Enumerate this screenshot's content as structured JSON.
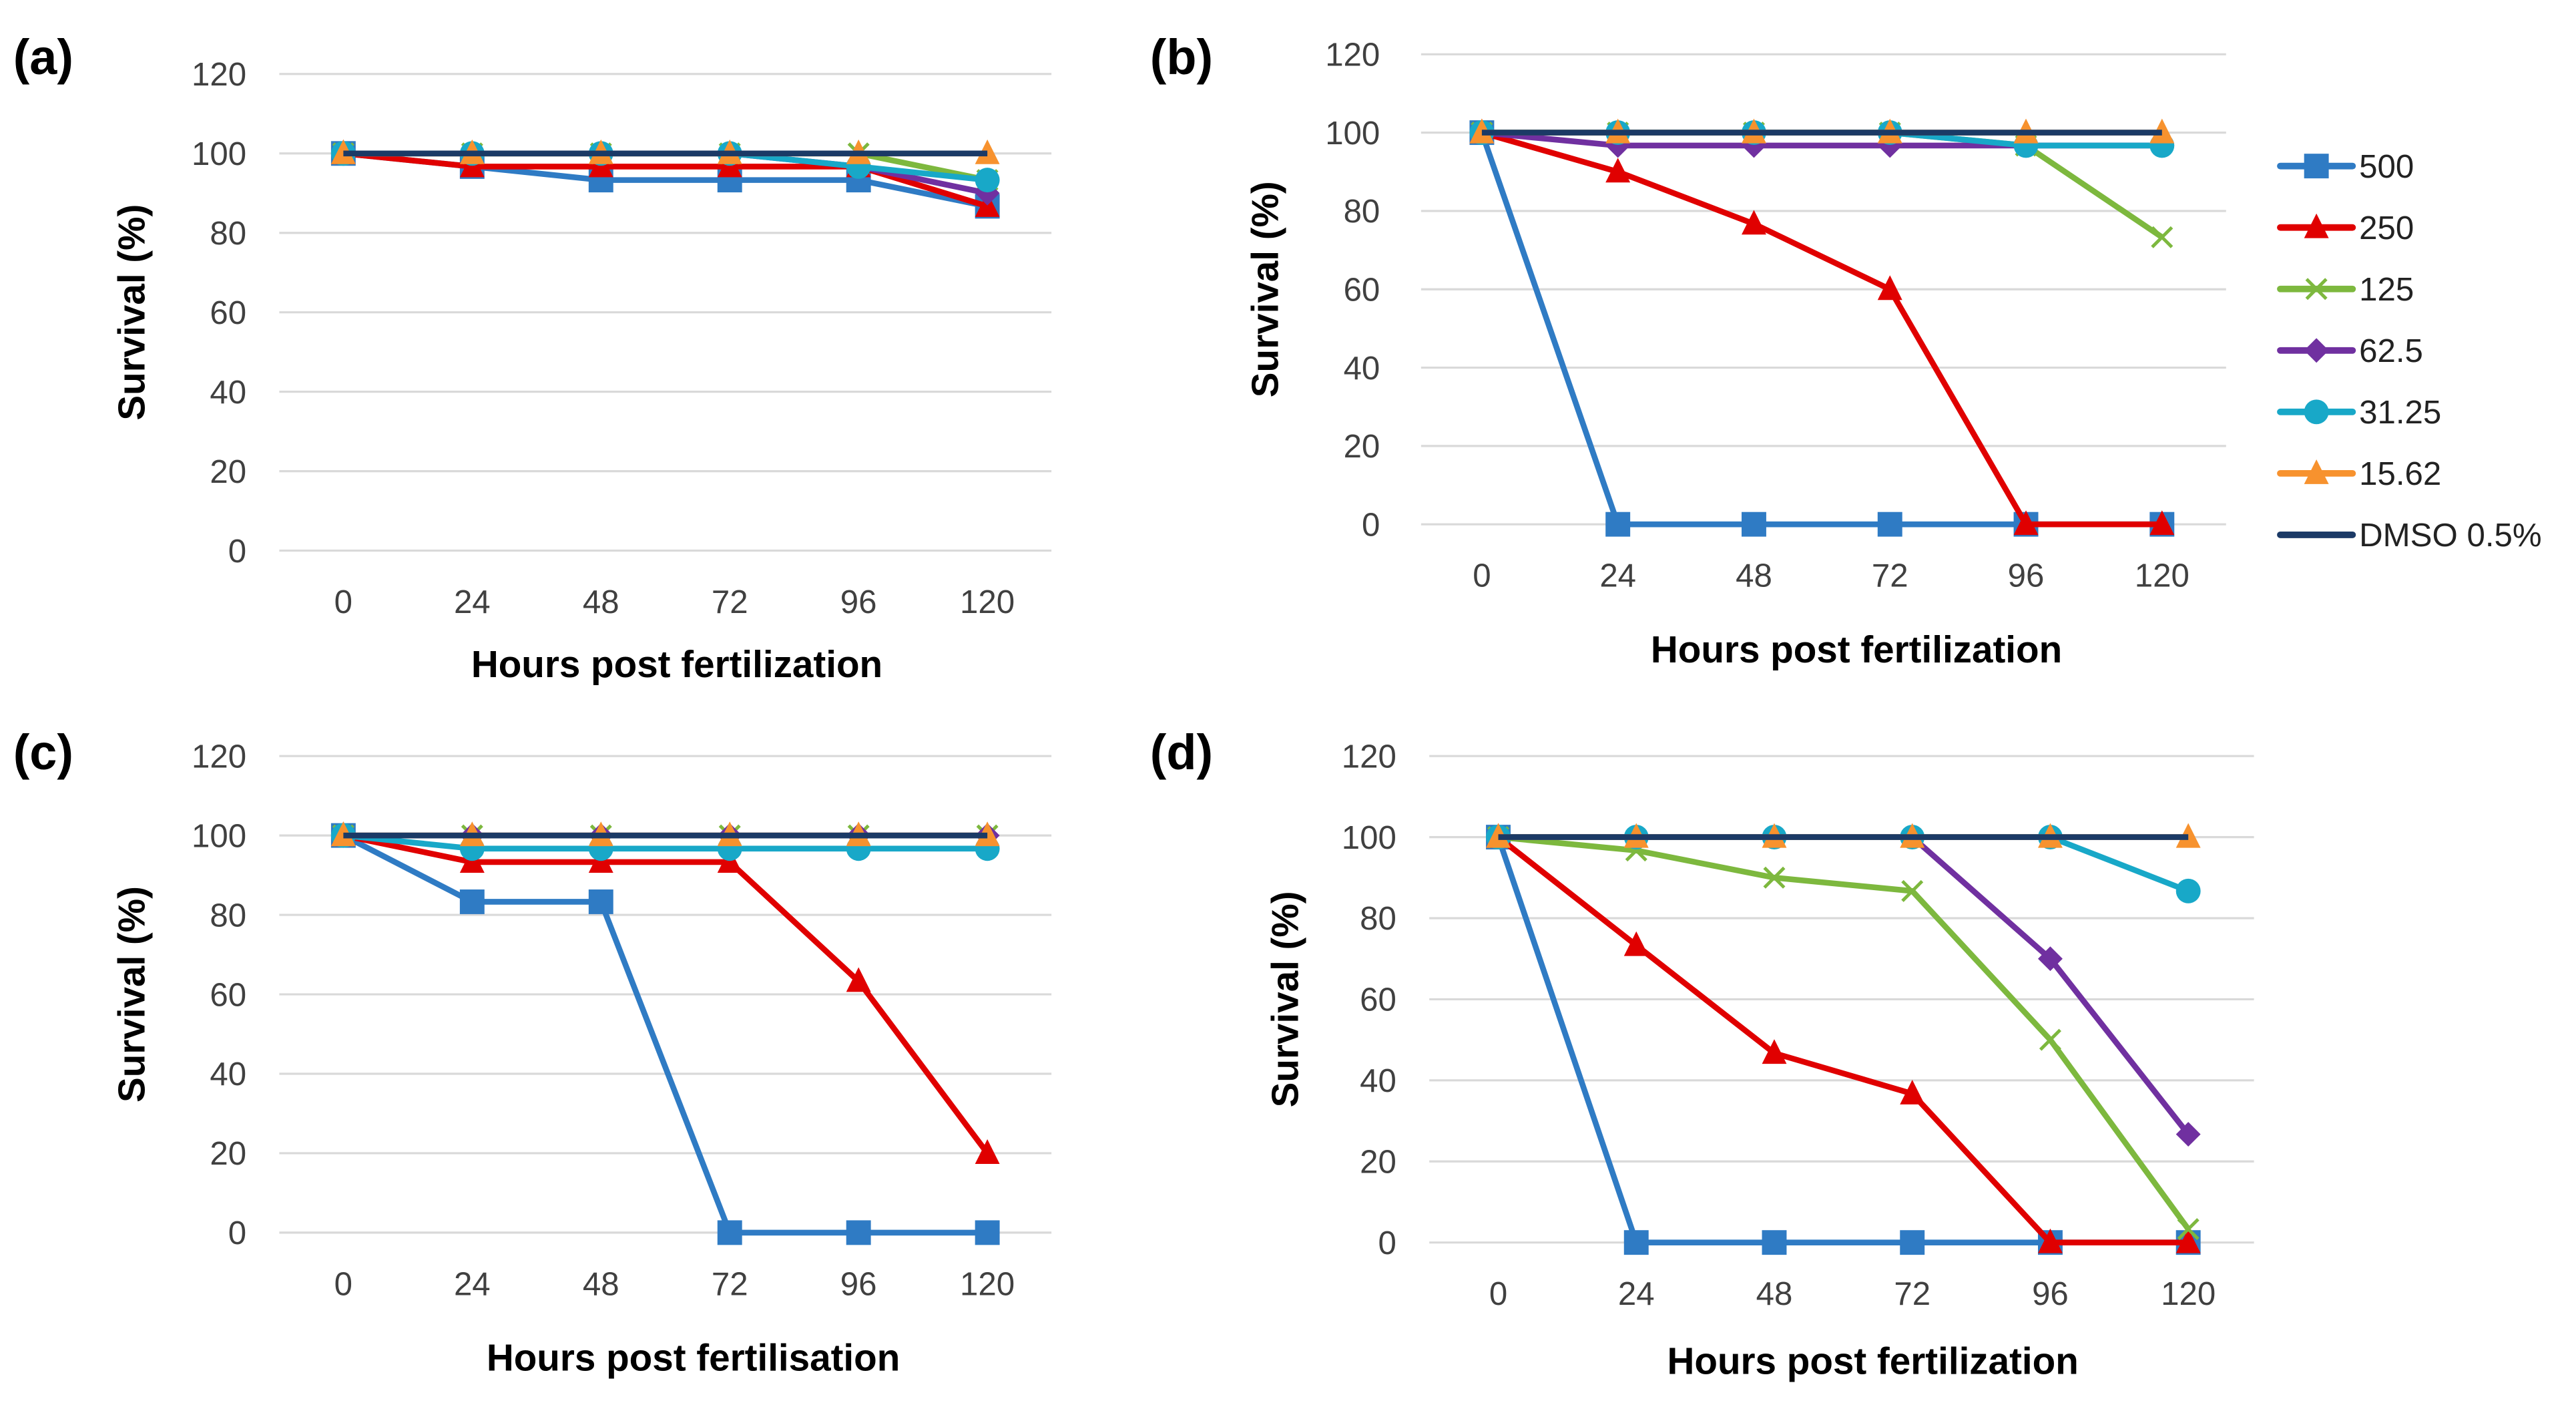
{
  "chart_data": [
    {
      "type": "line",
      "panel_label": "(a)",
      "xlabel": "Hours post fertilization",
      "ylabel": "Survival (%)",
      "x": [
        0,
        24,
        48,
        72,
        96,
        120
      ],
      "ylim": [
        0,
        120
      ],
      "yticks": [
        0,
        20,
        40,
        60,
        80,
        100,
        120
      ],
      "grid": true,
      "series": [
        {
          "name": "500",
          "values": [
            100,
            96.7,
            93.3,
            93.3,
            93.3,
            86.7
          ]
        },
        {
          "name": "250",
          "values": [
            100,
            96.7,
            96.7,
            96.7,
            96.7,
            86.7
          ]
        },
        {
          "name": "125",
          "values": [
            100,
            100,
            100,
            100,
            100,
            93.3
          ]
        },
        {
          "name": "62.5",
          "values": [
            100,
            100,
            100,
            100,
            96.7,
            90
          ]
        },
        {
          "name": "31.25",
          "values": [
            100,
            100,
            100,
            100,
            96.7,
            93.3
          ]
        },
        {
          "name": "15.62",
          "values": [
            100,
            100,
            100,
            100,
            100,
            100
          ]
        },
        {
          "name": "DMSO 0.5%",
          "values": [
            100,
            100,
            100,
            100,
            100,
            100
          ]
        }
      ]
    },
    {
      "type": "line",
      "panel_label": "(b)",
      "xlabel": "Hours post fertilization",
      "ylabel": "Survival (%)",
      "x": [
        0,
        24,
        48,
        72,
        96,
        120
      ],
      "ylim": [
        0,
        120
      ],
      "yticks": [
        0,
        20,
        40,
        60,
        80,
        100,
        120
      ],
      "grid": true,
      "legend": "right",
      "series": [
        {
          "name": "500",
          "values": [
            100,
            0,
            0,
            0,
            0,
            0
          ]
        },
        {
          "name": "250",
          "values": [
            100,
            90,
            76.7,
            60,
            0,
            0
          ]
        },
        {
          "name": "125",
          "values": [
            100,
            100,
            100,
            100,
            96.7,
            73.3
          ]
        },
        {
          "name": "62.5",
          "values": [
            100,
            96.7,
            96.7,
            96.7,
            96.7,
            96.7
          ]
        },
        {
          "name": "31.25",
          "values": [
            100,
            100,
            100,
            100,
            96.7,
            96.7
          ]
        },
        {
          "name": "15.62",
          "values": [
            100,
            100,
            100,
            100,
            100,
            100
          ]
        },
        {
          "name": "DMSO 0.5%",
          "values": [
            100,
            100,
            100,
            100,
            100,
            100
          ]
        }
      ]
    },
    {
      "type": "line",
      "panel_label": "(c)",
      "xlabel": "Hours post fertilisation",
      "ylabel": "Survival (%)",
      "x": [
        0,
        24,
        48,
        72,
        96,
        120
      ],
      "ylim": [
        0,
        120
      ],
      "yticks": [
        0,
        20,
        40,
        60,
        80,
        100,
        120
      ],
      "grid": true,
      "series": [
        {
          "name": "500",
          "values": [
            100,
            83.3,
            83.3,
            0,
            0,
            0
          ]
        },
        {
          "name": "250",
          "values": [
            100,
            93.3,
            93.3,
            93.3,
            63.3,
            20
          ]
        },
        {
          "name": "125",
          "values": [
            100,
            100,
            100,
            100,
            100,
            100
          ]
        },
        {
          "name": "62.5",
          "values": [
            100,
            100,
            100,
            100,
            100,
            100
          ]
        },
        {
          "name": "31.25",
          "values": [
            100,
            96.7,
            96.7,
            96.7,
            96.7,
            96.7
          ]
        },
        {
          "name": "15.62",
          "values": [
            100,
            100,
            100,
            100,
            100,
            100
          ]
        },
        {
          "name": "DMSO 0.5%",
          "values": [
            100,
            100,
            100,
            100,
            100,
            100
          ]
        }
      ]
    },
    {
      "type": "line",
      "panel_label": "(d)",
      "xlabel": "Hours post fertilization",
      "ylabel": "Survival (%)",
      "x": [
        0,
        24,
        48,
        72,
        96,
        120
      ],
      "ylim": [
        0,
        120
      ],
      "yticks": [
        0,
        20,
        40,
        60,
        80,
        100,
        120
      ],
      "grid": true,
      "series": [
        {
          "name": "500",
          "values": [
            100,
            0,
            0,
            0,
            0,
            0
          ]
        },
        {
          "name": "250",
          "values": [
            100,
            73.3,
            46.7,
            36.7,
            0,
            0
          ]
        },
        {
          "name": "125",
          "values": [
            100,
            96.7,
            90,
            86.7,
            50,
            3.3
          ]
        },
        {
          "name": "62.5",
          "values": [
            100,
            100,
            100,
            100,
            70,
            26.7
          ]
        },
        {
          "name": "31.25",
          "values": [
            100,
            100,
            100,
            100,
            100,
            86.7
          ]
        },
        {
          "name": "15.62",
          "values": [
            100,
            100,
            100,
            100,
            100,
            100
          ]
        },
        {
          "name": "DMSO 0.5%",
          "values": [
            100,
            100,
            100,
            100,
            100,
            100
          ]
        }
      ]
    }
  ],
  "series_style": {
    "500": {
      "color": "#2F7BC4",
      "marker": "square"
    },
    "250": {
      "color": "#E00000",
      "marker": "triangle"
    },
    "125": {
      "color": "#7DB83E",
      "marker": "x"
    },
    "62.5": {
      "color": "#7030A0",
      "marker": "diamond"
    },
    "31.25": {
      "color": "#18A8C8",
      "marker": "circle"
    },
    "15.62": {
      "color": "#F7922E",
      "marker": "triangle"
    },
    "DMSO 0.5%": {
      "color": "#1B3A66",
      "marker": "none"
    }
  }
}
